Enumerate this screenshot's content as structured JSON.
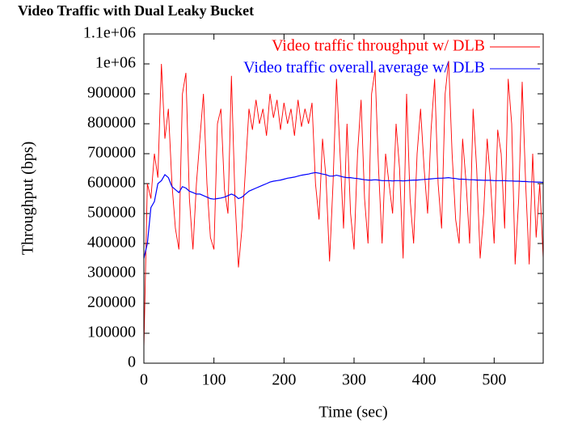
{
  "chart_data": {
    "type": "line",
    "title": "Video Traffic with Dual Leaky Bucket",
    "xlabel": "Time (sec)",
    "ylabel": "Throughput (bps)",
    "x": [
      0,
      5,
      10,
      15,
      20,
      25,
      30,
      35,
      40,
      45,
      50,
      55,
      60,
      65,
      70,
      75,
      80,
      85,
      90,
      95,
      100,
      105,
      110,
      115,
      120,
      125,
      130,
      135,
      140,
      145,
      150,
      155,
      160,
      165,
      170,
      175,
      180,
      185,
      190,
      195,
      200,
      205,
      210,
      215,
      220,
      225,
      230,
      235,
      240,
      245,
      250,
      255,
      260,
      265,
      270,
      275,
      280,
      285,
      290,
      295,
      300,
      305,
      310,
      315,
      320,
      325,
      330,
      335,
      340,
      345,
      350,
      355,
      360,
      365,
      370,
      375,
      380,
      385,
      390,
      395,
      400,
      405,
      410,
      415,
      420,
      425,
      430,
      435,
      440,
      445,
      450,
      455,
      460,
      465,
      470,
      475,
      480,
      485,
      490,
      495,
      500,
      505,
      510,
      515,
      520,
      525,
      530,
      535,
      540,
      545,
      550,
      555,
      560,
      565,
      570
    ],
    "series": [
      {
        "name": "Video traffic throughput w/ DLB",
        "color": "#ff0000",
        "values": [
          50000,
          600000,
          550000,
          700000,
          620000,
          1000000,
          750000,
          850000,
          600000,
          450000,
          380000,
          900000,
          970000,
          550000,
          380000,
          600000,
          750000,
          900000,
          600000,
          420000,
          380000,
          800000,
          850000,
          580000,
          500000,
          960000,
          550000,
          320000,
          450000,
          650000,
          850000,
          780000,
          880000,
          800000,
          850000,
          760000,
          900000,
          820000,
          880000,
          780000,
          870000,
          800000,
          850000,
          760000,
          880000,
          790000,
          850000,
          800000,
          870000,
          600000,
          480000,
          750000,
          620000,
          340000,
          600000,
          950000,
          700000,
          450000,
          800000,
          500000,
          380000,
          700000,
          880000,
          550000,
          400000,
          900000,
          980000,
          650000,
          400000,
          700000,
          600000,
          500000,
          800000,
          650000,
          350000,
          900000,
          550000,
          400000,
          700000,
          850000,
          650000,
          500000,
          780000,
          950000,
          600000,
          450000,
          900000,
          1010000,
          700000,
          480000,
          400000,
          750000,
          600000,
          400000,
          850000,
          650000,
          350000,
          500000,
          750000,
          600000,
          400000,
          780000,
          700000,
          450000,
          950000,
          800000,
          330000,
          550000,
          940000,
          600000,
          330000,
          700000,
          420000,
          600000,
          350000
        ]
      },
      {
        "name": "Video traffic overall average w/ DLB",
        "color": "#0000ff",
        "values": [
          350000,
          400000,
          520000,
          540000,
          600000,
          610000,
          630000,
          620000,
          590000,
          580000,
          570000,
          590000,
          585000,
          575000,
          570000,
          565000,
          565000,
          560000,
          555000,
          550000,
          548000,
          550000,
          552000,
          555000,
          560000,
          565000,
          560000,
          550000,
          555000,
          565000,
          575000,
          580000,
          585000,
          590000,
          595000,
          600000,
          605000,
          608000,
          610000,
          612000,
          615000,
          618000,
          620000,
          622000,
          625000,
          628000,
          630000,
          632000,
          635000,
          637000,
          635000,
          632000,
          630000,
          625000,
          625000,
          628000,
          625000,
          622000,
          620000,
          620000,
          618000,
          617000,
          615000,
          613000,
          612000,
          612000,
          613000,
          612000,
          610000,
          610000,
          610000,
          609000,
          610000,
          610000,
          609000,
          610000,
          611000,
          612000,
          612000,
          613000,
          614000,
          615000,
          616000,
          617000,
          618000,
          618000,
          619000,
          620000,
          618000,
          617000,
          615000,
          615000,
          614000,
          613000,
          613000,
          612000,
          612000,
          611000,
          611000,
          611000,
          610000,
          610000,
          610000,
          610000,
          609000,
          609000,
          608000,
          608000,
          607000,
          607000,
          606000,
          606000,
          605000,
          605000,
          604000
        ]
      }
    ],
    "xlim": [
      0,
      570
    ],
    "xticks": [
      0,
      100,
      200,
      300,
      400,
      500
    ],
    "ylim": [
      0,
      1100000
    ],
    "yticks": [
      0,
      100000,
      200000,
      300000,
      400000,
      500000,
      600000,
      700000,
      800000,
      900000,
      {
        "value": 1000000,
        "label": "1e+06"
      },
      {
        "value": 1100000,
        "label": "1.1e+06"
      }
    ],
    "legend": "upper right"
  }
}
